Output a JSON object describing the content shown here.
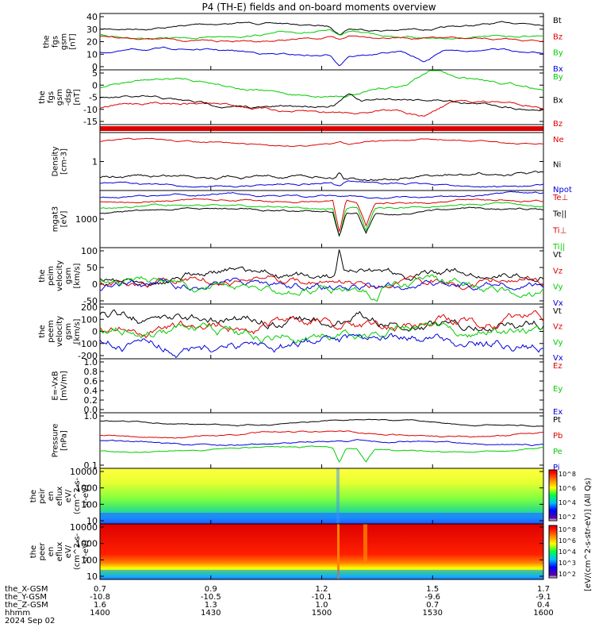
{
  "title": "P4 (TH-E) fields and on-board moments overview",
  "colors": {
    "black": "#000000",
    "red": "#dd0000",
    "green": "#00cc00",
    "blue": "#0000dd",
    "spec_red": "#dd0000"
  },
  "panels": [
    {
      "id": "fgs_all",
      "ylabel": [
        "the",
        "fgs",
        "gsm",
        "[nT]"
      ],
      "ticks": [
        "40",
        "30",
        "20",
        "10",
        "0"
      ],
      "legend": [
        [
          "Bt",
          "black"
        ],
        [
          "Bz",
          "red"
        ],
        [
          "By",
          "green"
        ],
        [
          "Bx",
          "blue"
        ]
      ]
    },
    {
      "id": "fgs_comp",
      "ylabel": [
        "the",
        "fgs",
        "gsm",
        "-dsp",
        "[nT]"
      ],
      "ticks": [
        "5",
        "0",
        "-5",
        "-10",
        "-15"
      ],
      "legend": [
        [
          "By",
          "green"
        ],
        [
          "Bx",
          "black"
        ],
        [
          "Bz",
          "red"
        ]
      ]
    },
    {
      "id": "density",
      "ylabel": [
        "Density",
        "[cm-3]"
      ],
      "ticks": [
        "1"
      ],
      "legend": [
        [
          "Ne",
          "red"
        ],
        [
          "Ni",
          "black"
        ],
        [
          "Npot",
          "blue"
        ]
      ]
    },
    {
      "id": "temp",
      "ylabel": [
        "mgat3",
        "[eV]"
      ],
      "ticks": [
        "1000"
      ],
      "legend": [
        [
          "Te⊥",
          "red"
        ],
        [
          "Te||",
          "black"
        ],
        [
          "Ti⊥",
          "red"
        ],
        [
          "Ti||",
          "green"
        ]
      ]
    },
    {
      "id": "peim_vel",
      "ylabel": [
        "the",
        "peim",
        "velocity",
        "gsm",
        "[km/s]"
      ],
      "ticks": [
        "100",
        "50",
        "0",
        "-50"
      ],
      "legend": [
        [
          "Vt",
          "black"
        ],
        [
          "Vz",
          "red"
        ],
        [
          "Vy",
          "green"
        ],
        [
          "Vx",
          "blue"
        ]
      ]
    },
    {
      "id": "peem_vel",
      "ylabel": [
        "the",
        "peem",
        "velocity",
        "gsm",
        "[km/s]"
      ],
      "ticks": [
        "200",
        "100",
        "0",
        "-100",
        "-200"
      ],
      "legend": [
        [
          "Vt",
          "black"
        ],
        [
          "Vz",
          "red"
        ],
        [
          "Vy",
          "green"
        ],
        [
          "Vx",
          "blue"
        ]
      ]
    },
    {
      "id": "efield",
      "ylabel": [
        "E=-VxB",
        "[mV/m]"
      ],
      "ticks": [
        "1.0",
        "0.8",
        "0.6",
        "0.4",
        "0.2",
        "0.0"
      ],
      "legend": [
        [
          "Ez",
          "red"
        ],
        [
          "Ey",
          "green"
        ],
        [
          "Ex",
          "blue"
        ]
      ]
    },
    {
      "id": "pressure",
      "ylabel": [
        "Pressure",
        "[nPa]"
      ],
      "ticks": [
        "1.0",
        "0.1"
      ],
      "legend": [
        [
          "Pt",
          "black"
        ],
        [
          "Pb",
          "red"
        ],
        [
          "Pe",
          "green"
        ],
        [
          "Pi",
          "blue"
        ]
      ]
    },
    {
      "id": "peir_spec",
      "ylabel": [
        "the",
        "peir",
        "en",
        "eflux",
        "eV/",
        "(cm^2-s-",
        "sr-eV)"
      ],
      "ticks": [
        "10000",
        "1000",
        "100",
        "10"
      ]
    },
    {
      "id": "peer_spec",
      "ylabel": [
        "the",
        "peer",
        "en",
        "eflux",
        "eV/",
        "(cm^2-s-",
        "sr-eV)"
      ],
      "ticks": [
        "10000",
        "1000",
        "100",
        "10"
      ]
    }
  ],
  "colorbar": {
    "label": "[eV/(cm^2-s-str-eV)] (All Qs)",
    "ticks1": [
      "10^8",
      "10^6",
      "10^4",
      "10^2"
    ],
    "ticks2": [
      "10^8",
      "10^6",
      "10^4",
      "10^3",
      "10^2"
    ]
  },
  "xaxis": {
    "rows": [
      {
        "label": "the_X-GSM",
        "values": [
          "0.7",
          "0.9",
          "1.2",
          "1.5",
          "1.7"
        ]
      },
      {
        "label": "the_Y-GSM",
        "values": [
          "-10.8",
          "-10.5",
          "-10.1",
          "-9.6",
          "-9.1"
        ]
      },
      {
        "label": "the_Z-GSM",
        "values": [
          "1.6",
          "1.3",
          "1.0",
          "0.7",
          "0.4"
        ]
      },
      {
        "label": "hhmm",
        "values": [
          "1400",
          "1430",
          "1500",
          "1530",
          "1600"
        ]
      }
    ],
    "date": "2024 Sep 02"
  },
  "chart_data": [
    {
      "type": "line",
      "title": "P4 (TH-E) fields and on-board moments overview",
      "ylabel": "the fgs gsm [nT]",
      "ylim": [
        -5,
        42
      ],
      "x": [
        "1400",
        "1430",
        "1500",
        "1530",
        "1600"
      ],
      "series": [
        {
          "name": "Bt",
          "values": [
            38,
            35,
            33,
            36,
            38
          ]
        },
        {
          "name": "Bz",
          "values": [
            22,
            22,
            24,
            20,
            19
          ]
        },
        {
          "name": "By",
          "values": [
            28,
            25,
            26,
            24,
            20
          ]
        },
        {
          "name": "Bx",
          "values": [
            10,
            7,
            5,
            0,
            6
          ]
        }
      ]
    },
    {
      "type": "line",
      "ylabel": "the fgs gsm -dsp [nT]",
      "ylim": [
        -20,
        7
      ],
      "x": [
        "1400",
        "1430",
        "1500",
        "1530",
        "1600"
      ],
      "series": [
        {
          "name": "By",
          "values": [
            0,
            3,
            -2,
            3,
            -8
          ]
        },
        {
          "name": "Bx",
          "values": [
            -8,
            -5,
            -7,
            -12,
            -10
          ]
        },
        {
          "name": "Bz",
          "values": [
            -5,
            -9,
            -10,
            -16,
            -12
          ]
        }
      ]
    },
    {
      "type": "line",
      "ylabel": "Density [cm-3]",
      "yscale": "log",
      "x": [
        "1400",
        "1430",
        "1500",
        "1530",
        "1600"
      ],
      "series": [
        {
          "name": "Ne",
          "values": [
            2.0,
            1.9,
            1.8,
            1.6,
            1.3
          ]
        },
        {
          "name": "Ni",
          "values": [
            0.45,
            0.5,
            0.55,
            0.6,
            0.65
          ]
        },
        {
          "name": "Npot",
          "values": [
            0.3,
            0.32,
            0.35,
            0.4,
            0.42
          ]
        }
      ]
    },
    {
      "type": "line",
      "ylabel": "mgat3 [eV]",
      "yscale": "log",
      "x": [
        "1400",
        "1430",
        "1500",
        "1530",
        "1600"
      ],
      "series": [
        {
          "name": "Te⊥",
          "values": [
            1700,
            1650,
            1600,
            1700,
            1800
          ]
        },
        {
          "name": "Te||",
          "values": [
            1300,
            1250,
            1400,
            1500,
            1600
          ]
        },
        {
          "name": "Ti⊥",
          "values": [
            2500,
            2400,
            2300,
            2500,
            2600
          ]
        },
        {
          "name": "Ti||",
          "values": [
            2000,
            1900,
            1900,
            2100,
            2200
          ]
        }
      ]
    },
    {
      "type": "line",
      "ylabel": "the peim velocity gsm [km/s]",
      "ylim": [
        -50,
        130
      ],
      "x": [
        "1400",
        "1430",
        "1500",
        "1530",
        "1600"
      ],
      "series": [
        {
          "name": "Vt",
          "values": [
            40,
            35,
            45,
            40,
            50
          ]
        },
        {
          "name": "Vz",
          "values": [
            20,
            15,
            25,
            10,
            15
          ]
        },
        {
          "name": "Vy",
          "values": [
            10,
            5,
            0,
            -10,
            5
          ]
        },
        {
          "name": "Vx",
          "values": [
            0,
            5,
            10,
            15,
            5
          ]
        }
      ]
    },
    {
      "type": "line",
      "ylabel": "the peem velocity gsm [km/s]",
      "ylim": [
        -200,
        200
      ],
      "x": [
        "1400",
        "1430",
        "1500",
        "1530",
        "1600"
      ],
      "series": [
        {
          "name": "Vt",
          "values": [
            100,
            100,
            110,
            120,
            120
          ]
        },
        {
          "name": "Vz",
          "values": [
            40,
            40,
            40,
            30,
            20
          ]
        },
        {
          "name": "Vy",
          "values": [
            0,
            0,
            10,
            0,
            -20
          ]
        },
        {
          "name": "Vx",
          "values": [
            -80,
            -80,
            -70,
            -60,
            -50
          ]
        }
      ]
    },
    {
      "type": "line",
      "ylabel": "E=-VxB [mV/m]",
      "ylim": [
        0,
        1
      ],
      "x": [],
      "series": []
    },
    {
      "type": "line",
      "ylabel": "Pressure [nPa]",
      "yscale": "log",
      "x": [
        "1400",
        "1430",
        "1500",
        "1530",
        "1600"
      ],
      "series": [
        {
          "name": "Pt",
          "values": [
            0.9,
            0.85,
            0.9,
            0.95,
            1.0
          ]
        },
        {
          "name": "Pb",
          "values": [
            0.55,
            0.5,
            0.55,
            0.45,
            0.5
          ]
        },
        {
          "name": "Pe",
          "values": [
            0.2,
            0.22,
            0.25,
            0.25,
            0.28
          ]
        },
        {
          "name": "Pi",
          "values": [
            0.3,
            0.32,
            0.3,
            0.28,
            0.28
          ]
        }
      ]
    },
    {
      "type": "heatmap",
      "ylabel": "the peir en eflux eV/(cm^2-s-sr-eV)",
      "yscale": "log",
      "ylim": [
        7,
        20000
      ]
    },
    {
      "type": "heatmap",
      "ylabel": "the peer en eflux eV/(cm^2-s-sr-eV)",
      "yscale": "log",
      "ylim": [
        7,
        20000
      ]
    }
  ]
}
